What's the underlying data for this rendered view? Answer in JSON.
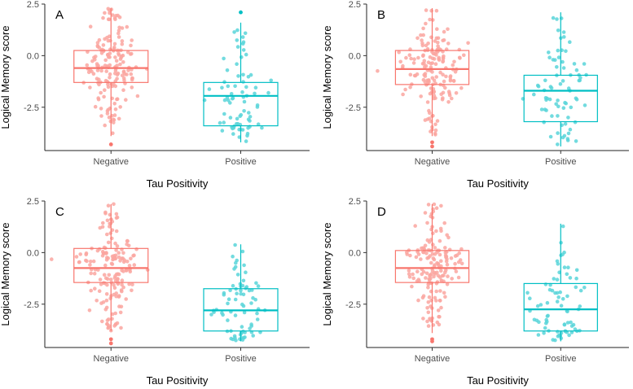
{
  "chart_data": [
    {
      "type": "box",
      "panel_label": "A",
      "categories": [
        "Negative",
        "Positive"
      ],
      "xlabel": "Tau Positivity",
      "ylabel": "Logical Memory score",
      "yticks": [
        "2.5",
        "0.0",
        "-2.5"
      ],
      "ylim": [
        -4.6,
        2.5
      ],
      "colors": {
        "Negative": "#F8766D",
        "Positive": "#00BFC4"
      },
      "boxes": [
        {
          "group": "Negative",
          "min": -3.9,
          "q1": -1.3,
          "median": -0.6,
          "q3": 0.25,
          "max": 2.3,
          "outliers": [
            -4.3
          ]
        },
        {
          "group": "Positive",
          "min": -4.2,
          "q1": -3.4,
          "median": -1.95,
          "q3": -1.3,
          "max": 1.6,
          "outliers": [
            2.1
          ]
        }
      ]
    },
    {
      "type": "box",
      "panel_label": "B",
      "categories": [
        "Negative",
        "Positive"
      ],
      "xlabel": "Tau Positivity",
      "ylabel": "Logical Memory score",
      "yticks": [
        "2.5",
        "0.0",
        "-2.5"
      ],
      "ylim": [
        -4.6,
        2.5
      ],
      "colors": {
        "Negative": "#F8766D",
        "Positive": "#00BFC4"
      },
      "boxes": [
        {
          "group": "Negative",
          "min": -3.9,
          "q1": -1.4,
          "median": -0.65,
          "q3": 0.25,
          "max": 2.3,
          "outliers": [
            -4.2,
            -4.4
          ]
        },
        {
          "group": "Positive",
          "min": -4.4,
          "q1": -3.2,
          "median": -1.7,
          "q3": -0.95,
          "max": 2.1,
          "outliers": []
        }
      ]
    },
    {
      "type": "box",
      "panel_label": "C",
      "categories": [
        "Negative",
        "Positive"
      ],
      "xlabel": "Tau Positivity",
      "ylabel": "Logical Memory score",
      "yticks": [
        "2.5",
        "0.0",
        "-2.5"
      ],
      "ylim": [
        -4.6,
        2.5
      ],
      "colors": {
        "Negative": "#F8766D",
        "Positive": "#00BFC4"
      },
      "boxes": [
        {
          "group": "Negative",
          "min": -3.8,
          "q1": -1.45,
          "median": -0.75,
          "q3": 0.2,
          "max": 2.35,
          "outliers": [
            -4.2,
            -4.4
          ]
        },
        {
          "group": "Positive",
          "min": -4.3,
          "q1": -3.8,
          "median": -2.8,
          "q3": -1.75,
          "max": 0.4,
          "outliers": []
        }
      ]
    },
    {
      "type": "box",
      "panel_label": "D",
      "categories": [
        "Negative",
        "Positive"
      ],
      "xlabel": "Tau Positivity",
      "ylabel": "Logical Memory score",
      "yticks": [
        "2.5",
        "0.0",
        "-2.5"
      ],
      "ylim": [
        -4.6,
        2.5
      ],
      "colors": {
        "Negative": "#F8766D",
        "Positive": "#00BFC4"
      },
      "boxes": [
        {
          "group": "Negative",
          "min": -3.9,
          "q1": -1.45,
          "median": -0.75,
          "q3": 0.1,
          "max": 2.35,
          "outliers": [
            -4.2,
            -4.3
          ]
        },
        {
          "group": "Positive",
          "min": -4.3,
          "q1": -3.8,
          "median": -2.75,
          "q3": -1.5,
          "max": 1.4,
          "outliers": []
        }
      ]
    }
  ]
}
